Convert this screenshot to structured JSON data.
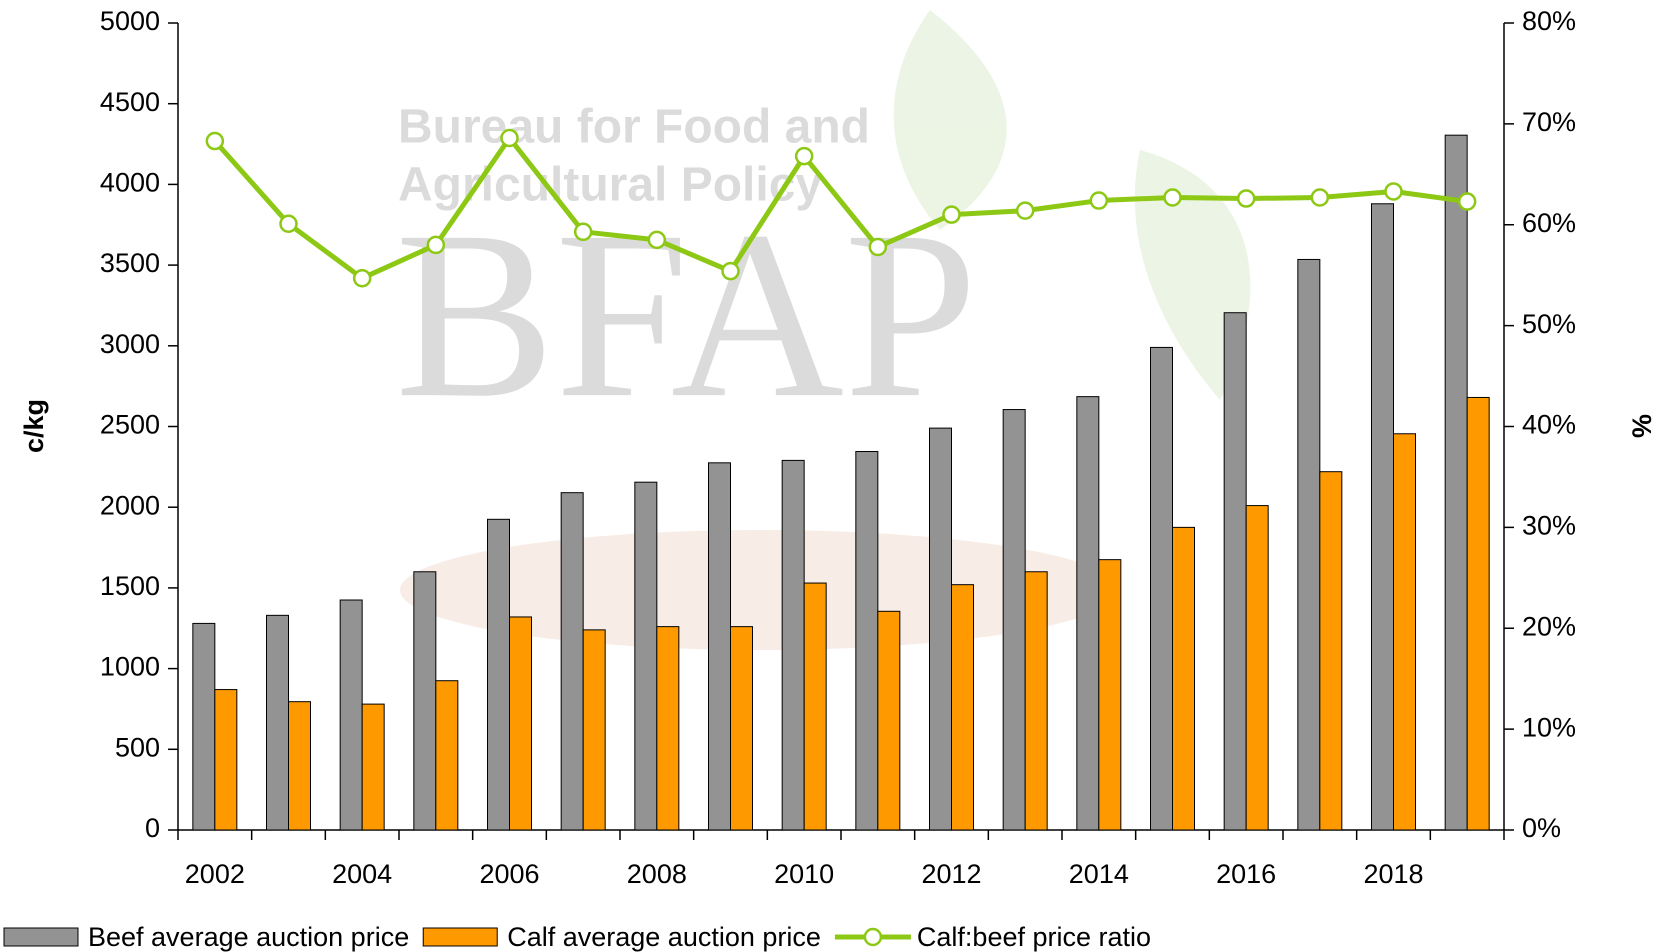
{
  "chart_data": {
    "type": "bar_line",
    "y_label": "c/kg",
    "y2_label": "%",
    "watermark": {
      "lines": [
        "Bureau for Food and",
        "Agricultural Policy"
      ],
      "logo": "BFAP"
    },
    "categories": [
      "2002",
      null,
      "2004",
      null,
      "2006",
      null,
      "2008",
      null,
      "2010",
      null,
      "2012",
      null,
      "2014",
      null,
      "2016",
      null,
      "2018",
      null
    ],
    "series": [
      {
        "name": "Beef average auction price",
        "type": "bar",
        "color": "#939393",
        "values": [
          1280,
          1330,
          1425,
          1600,
          1925,
          2090,
          2155,
          2275,
          2290,
          2345,
          2490,
          2605,
          2685,
          2990,
          3205,
          3535,
          3880,
          4305
        ]
      },
      {
        "name": "Calf average auction price",
        "type": "bar",
        "color": "#ff9900",
        "values": [
          870,
          795,
          780,
          925,
          1320,
          1240,
          1260,
          1260,
          1530,
          1355,
          1520,
          1600,
          1675,
          1875,
          2010,
          2220,
          2455,
          2680
        ]
      },
      {
        "name": "Calf:beef price ratio",
        "type": "line",
        "axis": "y2",
        "color": "#8cc814",
        "values": [
          68.3,
          60.1,
          54.7,
          58.0,
          68.6,
          59.3,
          58.5,
          55.4,
          66.8,
          57.8,
          61.0,
          61.4,
          62.4,
          62.7,
          62.6,
          62.7,
          63.3,
          62.3
        ]
      }
    ],
    "ylim": [
      0,
      5000
    ],
    "yticks": [
      0,
      500,
      1000,
      1500,
      2000,
      2500,
      3000,
      3500,
      4000,
      4500,
      5000
    ],
    "y2lim": [
      0,
      80
    ],
    "y2ticks": [
      {
        "value": 0,
        "label": "0%"
      },
      {
        "value": 10,
        "label": "10%"
      },
      {
        "value": 20,
        "label": "20%"
      },
      {
        "value": 30,
        "label": "30%"
      },
      {
        "value": 40,
        "label": "40%"
      },
      {
        "value": 50,
        "label": "50%"
      },
      {
        "value": 60,
        "label": "60%"
      },
      {
        "value": 70,
        "label": "70%"
      },
      {
        "value": 80,
        "label": "80%"
      }
    ],
    "legend": "bottom"
  }
}
